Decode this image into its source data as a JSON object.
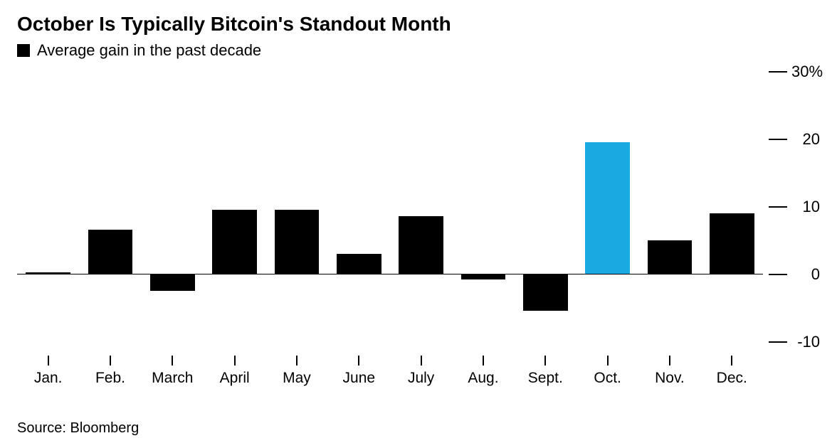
{
  "chart": {
    "type": "bar",
    "title": "October Is Typically Bitcoin's Standout Month",
    "legend_label": "Average gain in the past decade",
    "legend_swatch_color": "#000000",
    "source": "Source: Bloomberg",
    "background_color": "#ffffff",
    "text_color": "#000000",
    "title_fontsize": 28,
    "legend_fontsize": 22,
    "axis_label_fontsize": 22,
    "source_fontsize": 20,
    "ylim_min": -10,
    "ylim_max": 30,
    "y_ticks": [
      {
        "value": 30,
        "label": "30%"
      },
      {
        "value": 20,
        "label": "20"
      },
      {
        "value": 10,
        "label": "10"
      },
      {
        "value": 0,
        "label": "0"
      },
      {
        "value": -10,
        "label": "-10"
      }
    ],
    "baseline_color": "#000000",
    "tick_color": "#000000",
    "bar_width_ratio": 0.72,
    "categories": [
      {
        "label": "Jan.",
        "value": 0.2,
        "color": "#000000"
      },
      {
        "label": "Feb.",
        "value": 6.5,
        "color": "#000000"
      },
      {
        "label": "March",
        "value": -2.5,
        "color": "#000000"
      },
      {
        "label": "April",
        "value": 9.5,
        "color": "#000000"
      },
      {
        "label": "May",
        "value": 9.5,
        "color": "#000000"
      },
      {
        "label": "June",
        "value": 3.0,
        "color": "#000000"
      },
      {
        "label": "July",
        "value": 8.5,
        "color": "#000000"
      },
      {
        "label": "Aug.",
        "value": -0.8,
        "color": "#000000"
      },
      {
        "label": "Sept.",
        "value": -5.5,
        "color": "#000000"
      },
      {
        "label": "Oct.",
        "value": 19.5,
        "color": "#19aae2"
      },
      {
        "label": "Nov.",
        "value": 5.0,
        "color": "#000000"
      },
      {
        "label": "Dec.",
        "value": 9.0,
        "color": "#000000"
      }
    ]
  }
}
